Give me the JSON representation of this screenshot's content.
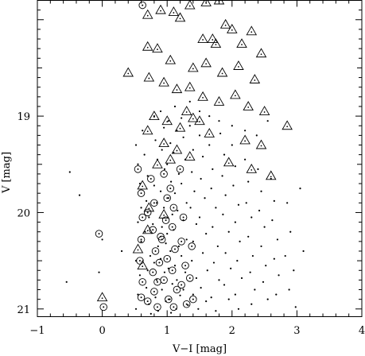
{
  "chart_data": {
    "type": "scatter",
    "title": "",
    "xlabel": "V−I [mag]",
    "ylabel": "V [mag]",
    "xlim": [
      -1,
      4
    ],
    "ylim": [
      21.08,
      17.8
    ],
    "y_inverted": true,
    "grid": false,
    "legend": "none",
    "x_ticks": [
      -1,
      0,
      1,
      2,
      3,
      4
    ],
    "y_ticks": [
      19,
      20,
      21
    ],
    "series": [
      {
        "marker": "dot",
        "points": [
          [
            -0.5,
            19.58
          ],
          [
            -0.35,
            19.82
          ],
          [
            -0.55,
            20.72
          ],
          [
            0.0,
            20.28
          ],
          [
            -0.05,
            20.62
          ],
          [
            0.3,
            20.4
          ],
          [
            0.52,
            19.3
          ],
          [
            0.55,
            19.5
          ],
          [
            0.58,
            19.7
          ],
          [
            0.6,
            19.95
          ],
          [
            0.55,
            20.1
          ],
          [
            0.6,
            20.3
          ],
          [
            0.52,
            20.5
          ],
          [
            0.58,
            20.65
          ],
          [
            0.55,
            20.85
          ],
          [
            0.52,
            21.0
          ],
          [
            0.62,
            19.15
          ],
          [
            0.65,
            19.4
          ],
          [
            0.7,
            19.62
          ],
          [
            0.68,
            19.88
          ],
          [
            0.72,
            20.05
          ],
          [
            0.66,
            20.2
          ],
          [
            0.74,
            20.45
          ],
          [
            0.7,
            20.6
          ],
          [
            0.68,
            20.78
          ],
          [
            0.72,
            20.95
          ],
          [
            0.75,
            21.05
          ],
          [
            0.8,
            19.0
          ],
          [
            0.82,
            19.25
          ],
          [
            0.85,
            19.45
          ],
          [
            0.8,
            19.72
          ],
          [
            0.84,
            19.9
          ],
          [
            0.78,
            20.12
          ],
          [
            0.86,
            20.35
          ],
          [
            0.8,
            20.52
          ],
          [
            0.84,
            20.7
          ],
          [
            0.82,
            20.88
          ],
          [
            0.86,
            21.02
          ],
          [
            0.9,
            18.95
          ],
          [
            0.95,
            19.12
          ],
          [
            0.92,
            19.35
          ],
          [
            0.96,
            19.55
          ],
          [
            0.9,
            19.78
          ],
          [
            0.95,
            19.95
          ],
          [
            0.92,
            20.15
          ],
          [
            0.98,
            20.32
          ],
          [
            0.9,
            20.48
          ],
          [
            0.96,
            20.62
          ],
          [
            0.92,
            20.8
          ],
          [
            0.98,
            20.92
          ],
          [
            1.02,
            19.05
          ],
          [
            1.05,
            19.28
          ],
          [
            1.0,
            19.5
          ],
          [
            1.06,
            19.68
          ],
          [
            1.02,
            19.85
          ],
          [
            1.08,
            20.02
          ],
          [
            1.0,
            20.22
          ],
          [
            1.05,
            20.4
          ],
          [
            1.02,
            20.58
          ],
          [
            1.08,
            20.74
          ],
          [
            1.04,
            20.9
          ],
          [
            1.06,
            21.04
          ],
          [
            1.12,
            18.9
          ],
          [
            1.15,
            19.15
          ],
          [
            1.1,
            19.38
          ],
          [
            1.18,
            19.6
          ],
          [
            1.12,
            19.8
          ],
          [
            1.16,
            19.98
          ],
          [
            1.1,
            20.18
          ],
          [
            1.18,
            20.35
          ],
          [
            1.12,
            20.55
          ],
          [
            1.15,
            20.7
          ],
          [
            1.2,
            20.86
          ],
          [
            1.14,
            21.0
          ],
          [
            1.22,
            19.02
          ],
          [
            1.25,
            19.22
          ],
          [
            1.28,
            19.45
          ],
          [
            1.22,
            19.7
          ],
          [
            1.3,
            19.9
          ],
          [
            1.25,
            20.08
          ],
          [
            1.3,
            20.28
          ],
          [
            1.22,
            20.45
          ],
          [
            1.28,
            20.62
          ],
          [
            1.25,
            20.8
          ],
          [
            1.32,
            20.96
          ],
          [
            1.35,
            19.1
          ],
          [
            1.4,
            19.35
          ],
          [
            1.38,
            19.58
          ],
          [
            1.42,
            19.78
          ],
          [
            1.36,
            19.95
          ],
          [
            1.45,
            20.12
          ],
          [
            1.4,
            20.3
          ],
          [
            1.38,
            20.5
          ],
          [
            1.45,
            20.68
          ],
          [
            1.4,
            20.85
          ],
          [
            1.48,
            21.0
          ],
          [
            1.5,
            19.2
          ],
          [
            1.55,
            19.42
          ],
          [
            1.52,
            19.65
          ],
          [
            1.58,
            19.85
          ],
          [
            1.5,
            20.05
          ],
          [
            1.6,
            20.22
          ],
          [
            1.55,
            20.42
          ],
          [
            1.62,
            20.6
          ],
          [
            1.52,
            20.78
          ],
          [
            1.6,
            20.92
          ],
          [
            1.65,
            19.3
          ],
          [
            1.7,
            19.55
          ],
          [
            1.68,
            19.75
          ],
          [
            1.75,
            19.95
          ],
          [
            1.7,
            20.15
          ],
          [
            1.78,
            20.35
          ],
          [
            1.72,
            20.52
          ],
          [
            1.8,
            20.7
          ],
          [
            1.68,
            20.88
          ],
          [
            1.75,
            21.02
          ],
          [
            1.82,
            19.18
          ],
          [
            1.88,
            19.4
          ],
          [
            1.85,
            19.62
          ],
          [
            1.9,
            19.82
          ],
          [
            1.86,
            20.02
          ],
          [
            1.95,
            20.2
          ],
          [
            1.9,
            20.42
          ],
          [
            1.98,
            20.58
          ],
          [
            1.88,
            20.75
          ],
          [
            1.95,
            20.9
          ],
          [
            2.0,
            19.3
          ],
          [
            2.05,
            19.52
          ],
          [
            2.02,
            19.72
          ],
          [
            2.1,
            19.92
          ],
          [
            2.05,
            20.1
          ],
          [
            2.12,
            20.3
          ],
          [
            2.08,
            20.5
          ],
          [
            2.15,
            20.68
          ],
          [
            2.05,
            20.85
          ],
          [
            2.1,
            21.0
          ],
          [
            2.2,
            19.45
          ],
          [
            2.25,
            19.68
          ],
          [
            2.22,
            19.9
          ],
          [
            2.3,
            20.05
          ],
          [
            2.25,
            20.25
          ],
          [
            2.32,
            20.45
          ],
          [
            2.28,
            20.62
          ],
          [
            2.35,
            20.8
          ],
          [
            2.3,
            20.95
          ],
          [
            2.4,
            19.55
          ],
          [
            2.45,
            19.78
          ],
          [
            2.42,
            19.98
          ],
          [
            2.5,
            20.15
          ],
          [
            2.45,
            20.35
          ],
          [
            2.52,
            20.55
          ],
          [
            2.48,
            20.72
          ],
          [
            2.55,
            20.9
          ],
          [
            2.6,
            19.65
          ],
          [
            2.65,
            19.88
          ],
          [
            2.62,
            20.08
          ],
          [
            2.7,
            20.28
          ],
          [
            2.65,
            20.48
          ],
          [
            2.72,
            20.65
          ],
          [
            2.68,
            20.85
          ],
          [
            2.85,
            19.9
          ],
          [
            2.9,
            20.2
          ],
          [
            2.82,
            20.45
          ],
          [
            2.95,
            20.6
          ],
          [
            2.88,
            20.8
          ],
          [
            3.05,
            19.75
          ],
          [
            3.1,
            20.4
          ],
          [
            2.98,
            20.98
          ],
          [
            1.35,
            18.85
          ],
          [
            1.5,
            18.95
          ],
          [
            1.65,
            19.0
          ],
          [
            1.8,
            19.05
          ],
          [
            2.0,
            19.1
          ],
          [
            2.2,
            19.15
          ],
          [
            2.38,
            19.2
          ],
          [
            2.55,
            19.05
          ]
        ]
      },
      {
        "marker": "circle",
        "points": [
          [
            0.62,
            17.85
          ],
          [
            0.55,
            19.55
          ],
          [
            0.6,
            19.8
          ],
          [
            0.62,
            20.05
          ],
          [
            0.6,
            20.28
          ],
          [
            0.58,
            20.5
          ],
          [
            0.62,
            20.72
          ],
          [
            0.6,
            20.88
          ],
          [
            0.7,
            20.92
          ],
          [
            -0.05,
            20.22
          ],
          [
            0.02,
            20.98
          ],
          [
            0.75,
            19.65
          ],
          [
            0.8,
            19.9
          ],
          [
            0.78,
            20.18
          ],
          [
            0.82,
            20.4
          ],
          [
            0.78,
            20.62
          ],
          [
            0.8,
            20.82
          ],
          [
            0.85,
            20.98
          ],
          [
            0.95,
            19.6
          ],
          [
            1.0,
            19.85
          ],
          [
            0.98,
            20.08
          ],
          [
            0.92,
            20.28
          ],
          [
            1.0,
            20.48
          ],
          [
            0.95,
            20.7
          ],
          [
            1.02,
            20.9
          ],
          [
            1.05,
            19.75
          ],
          [
            1.1,
            19.95
          ],
          [
            1.08,
            20.15
          ],
          [
            1.12,
            20.38
          ],
          [
            1.08,
            20.6
          ],
          [
            1.15,
            20.8
          ],
          [
            1.1,
            20.98
          ],
          [
            1.2,
            19.55
          ],
          [
            1.25,
            20.05
          ],
          [
            1.22,
            20.3
          ],
          [
            1.28,
            20.55
          ],
          [
            1.22,
            20.75
          ],
          [
            1.3,
            20.95
          ],
          [
            1.35,
            20.68
          ],
          [
            1.4,
            20.9
          ],
          [
            1.38,
            20.35
          ],
          [
            0.7,
            20.0
          ],
          [
            0.88,
            20.52
          ],
          [
            0.85,
            20.72
          ],
          [
            0.9,
            20.25
          ]
        ]
      },
      {
        "marker": "triangle",
        "points": [
          [
            0.7,
            17.95
          ],
          [
            0.9,
            17.9
          ],
          [
            1.1,
            17.92
          ],
          [
            1.35,
            17.85
          ],
          [
            1.6,
            17.82
          ],
          [
            1.8,
            17.8
          ],
          [
            1.2,
            17.98
          ],
          [
            1.9,
            18.05
          ],
          [
            2.0,
            18.1
          ],
          [
            2.3,
            18.12
          ],
          [
            1.55,
            18.2
          ],
          [
            1.75,
            18.25
          ],
          [
            2.15,
            18.25
          ],
          [
            2.45,
            18.35
          ],
          [
            0.7,
            18.28
          ],
          [
            0.85,
            18.3
          ],
          [
            1.05,
            18.42
          ],
          [
            1.4,
            18.5
          ],
          [
            1.6,
            18.45
          ],
          [
            1.85,
            18.55
          ],
          [
            2.1,
            18.48
          ],
          [
            2.35,
            18.62
          ],
          [
            0.4,
            18.55
          ],
          [
            0.72,
            18.6
          ],
          [
            0.95,
            18.65
          ],
          [
            1.15,
            18.72
          ],
          [
            1.35,
            18.7
          ],
          [
            1.55,
            18.8
          ],
          [
            1.8,
            18.85
          ],
          [
            2.05,
            18.78
          ],
          [
            2.25,
            18.9
          ],
          [
            2.5,
            18.95
          ],
          [
            0.8,
            19.0
          ],
          [
            1.0,
            19.05
          ],
          [
            1.2,
            19.12
          ],
          [
            1.4,
            19.02
          ],
          [
            1.65,
            19.18
          ],
          [
            2.2,
            19.25
          ],
          [
            2.45,
            19.3
          ],
          [
            0.7,
            19.15
          ],
          [
            0.95,
            19.28
          ],
          [
            1.15,
            19.35
          ],
          [
            1.35,
            19.42
          ],
          [
            1.95,
            19.48
          ],
          [
            2.3,
            19.55
          ],
          [
            2.6,
            19.62
          ],
          [
            2.85,
            19.1
          ],
          [
            0.62,
            19.72
          ],
          [
            0.85,
            19.5
          ],
          [
            0.72,
            19.95
          ],
          [
            0.95,
            20.02
          ],
          [
            1.05,
            19.45
          ],
          [
            0.7,
            20.18
          ],
          [
            1.5,
            19.05
          ],
          [
            1.7,
            18.2
          ],
          [
            1.3,
            18.95
          ],
          [
            0.55,
            20.38
          ],
          [
            0.62,
            20.55
          ],
          [
            0.0,
            20.88
          ]
        ]
      }
    ]
  }
}
